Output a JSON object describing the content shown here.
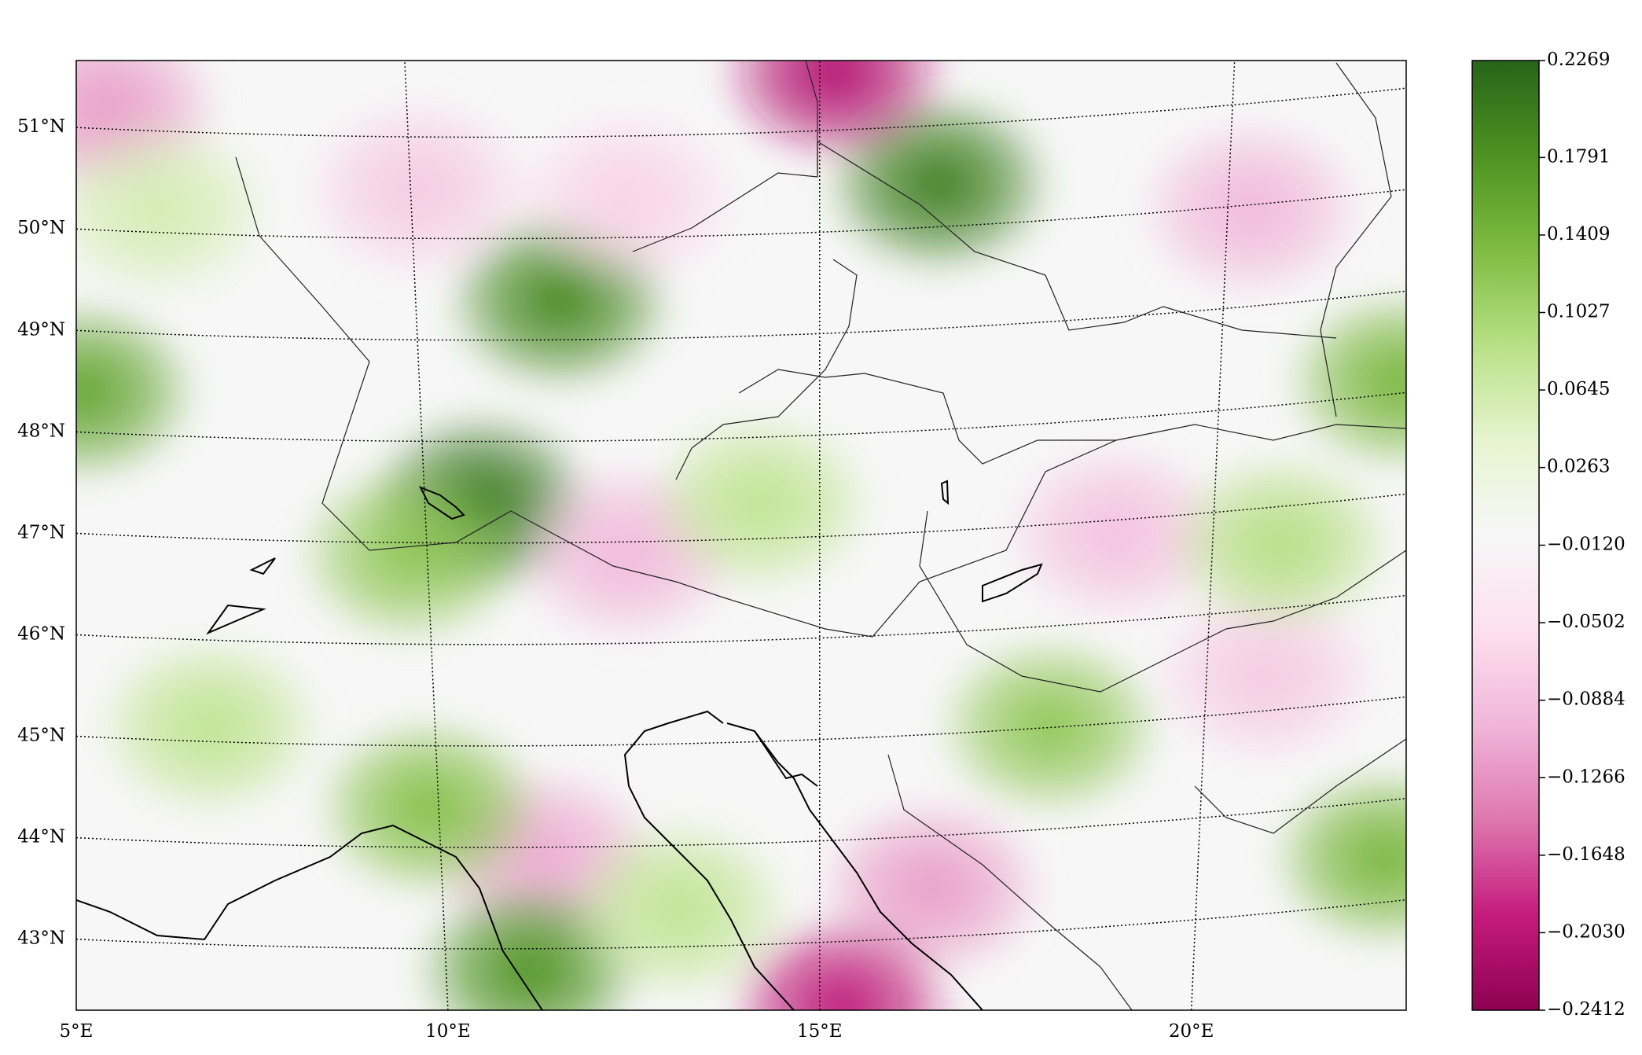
{
  "chart_data": {
    "type": "map",
    "xlim": [
      5,
      22.89
    ],
    "ylim": [
      42.3,
      51.66
    ],
    "xticks": [
      {
        "value": 5,
        "label": "5°E"
      },
      {
        "value": 10,
        "label": "10°E"
      },
      {
        "value": 15,
        "label": "15°E"
      },
      {
        "value": 20,
        "label": "20°E"
      }
    ],
    "yticks": [
      {
        "value": 43,
        "label": "43°N"
      },
      {
        "value": 44,
        "label": "44°N"
      },
      {
        "value": 45,
        "label": "45°N"
      },
      {
        "value": 46,
        "label": "46°N"
      },
      {
        "value": 47,
        "label": "47°N"
      },
      {
        "value": 48,
        "label": "48°N"
      },
      {
        "value": 49,
        "label": "49°N"
      },
      {
        "value": 50,
        "label": "50°N"
      },
      {
        "value": 51,
        "label": "51°N"
      }
    ],
    "grid": true,
    "colorbar": {
      "clim": [
        -0.2412,
        0.2269
      ],
      "ticks": [
        0.2269,
        0.1791,
        0.1409,
        0.1027,
        0.0645,
        0.0263,
        {
          "value": -0.012,
          "label": "−0.0120"
        },
        {
          "value": -0.0502,
          "label": "−0.0502"
        },
        {
          "value": -0.0884,
          "label": "−0.0884"
        },
        {
          "value": -0.1266,
          "label": "−0.1266"
        },
        {
          "value": -0.1648,
          "label": "−0.1648"
        },
        {
          "value": -0.203,
          "label": "−0.2030"
        },
        {
          "value": -0.2412,
          "label": "−0.2412"
        }
      ],
      "colors": [
        "#8e0152",
        "#c51b7d",
        "#de77ae",
        "#f1b6da",
        "#fde0ef",
        "#f7f7f7",
        "#e6f5d0",
        "#b8e186",
        "#7fbc41",
        "#4d9221",
        "#276419"
      ]
    },
    "field": {
      "lon": [
        16.6,
        11.5,
        10.45,
        15.2,
        5.4,
        20.8,
        5.1,
        22.8,
        12.4,
        19.0,
        9.5,
        18.1,
        16.5,
        11.3,
        11.1,
        15.3,
        9.75,
        22.6,
        14.2,
        12.4,
        9.6,
        6.1,
        13.1,
        21.0,
        21.2,
        6.8
      ],
      "lat": [
        50.45,
        49.3,
        47.3,
        51.55,
        51.2,
        50.2,
        48.4,
        48.5,
        46.8,
        47.0,
        46.8,
        45.1,
        43.5,
        43.8,
        42.7,
        42.35,
        44.3,
        43.8,
        47.3,
        50.3,
        50.4,
        50.2,
        43.3,
        45.6,
        46.9,
        45.1
      ],
      "values": [
        0.2,
        0.19,
        0.21,
        -0.21,
        -0.12,
        -0.1,
        0.16,
        0.14,
        -0.1,
        -0.09,
        0.12,
        0.12,
        -0.12,
        -0.11,
        0.18,
        -0.2,
        0.13,
        0.14,
        0.08,
        -0.07,
        -0.08,
        0.06,
        0.08,
        -0.08,
        0.09,
        0.08
      ]
    }
  }
}
